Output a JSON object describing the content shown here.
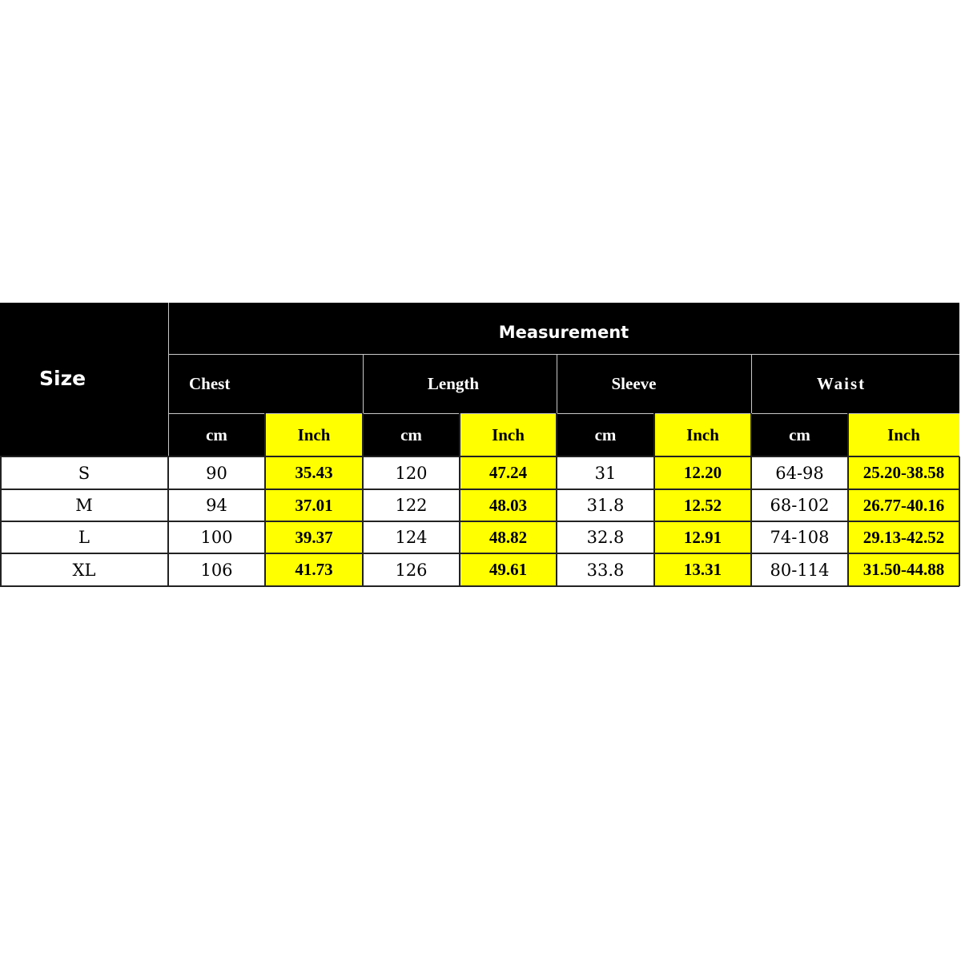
{
  "table": {
    "size_header": "Size",
    "measurement_header": "Measurement",
    "groups": [
      "Chest",
      "Length",
      "Sleeve",
      "Waist"
    ],
    "units": [
      "cm",
      "Inch",
      "cm",
      "Inch",
      "cm",
      "Inch",
      "cm",
      "Inch"
    ],
    "rows": [
      [
        "S",
        "90",
        "35.43",
        "120",
        "47.24",
        "31",
        "12.20",
        "64-98",
        "25.20-38.58"
      ],
      [
        "M",
        "94",
        "37.01",
        "122",
        "48.03",
        "31.8",
        "12.52",
        "68-102",
        "26.77-40.16"
      ],
      [
        "L",
        "100",
        "39.37",
        "124",
        "48.82",
        "32.8",
        "12.91",
        "74-108",
        "29.13-42.52"
      ],
      [
        "XL",
        "106",
        "41.73",
        "126",
        "49.61",
        "33.8",
        "13.31",
        "80-114",
        "31.50-44.88"
      ]
    ]
  },
  "colors": {
    "header_bg": "#000000",
    "inch_highlight": "#ffff00",
    "body_bg": "#ffffff"
  }
}
